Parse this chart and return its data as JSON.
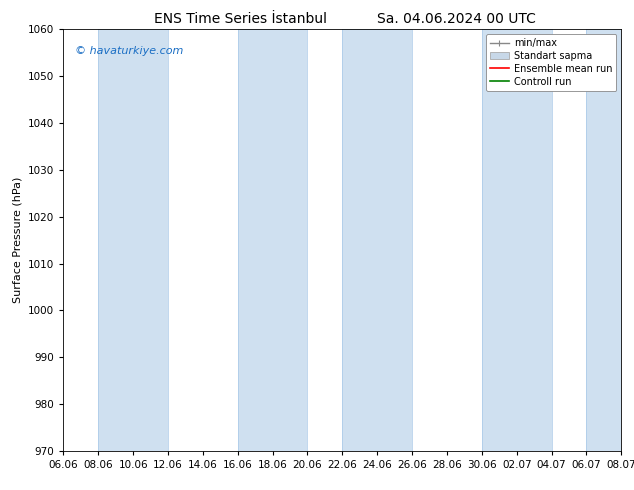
{
  "title": "ENS Time Series İstanbul",
  "subtitle": "Sa. 04.06.2024 00 UTC",
  "ylabel": "Surface Pressure (hPa)",
  "ylim": [
    970,
    1060
  ],
  "yticks": [
    970,
    980,
    990,
    1000,
    1010,
    1020,
    1030,
    1040,
    1050,
    1060
  ],
  "x_labels": [
    "06.06",
    "08.06",
    "10.06",
    "12.06",
    "14.06",
    "16.06",
    "18.06",
    "20.06",
    "22.06",
    "24.06",
    "26.06",
    "28.06",
    "30.06",
    "02.07",
    "04.07",
    "06.07",
    "08.07"
  ],
  "watermark": "© havaturkiye.com",
  "legend_entries": [
    "min/max",
    "Standart sapma",
    "Ensemble mean run",
    "Controll run"
  ],
  "band_color": "#cfe0f0",
  "band_edge_color": "#a8c8e8",
  "background_color": "#ffffff",
  "plot_bg_color": "#ffffff",
  "title_fontsize": 10,
  "axis_fontsize": 8,
  "tick_fontsize": 7.5,
  "watermark_color": "#1a6ec4",
  "mean_color": "#ff0000",
  "control_color": "#008000",
  "std_color": "#c8d8e8",
  "band_indices": [
    1,
    5,
    9,
    12,
    15
  ],
  "band_widths": [
    2,
    2,
    2,
    2,
    2
  ]
}
